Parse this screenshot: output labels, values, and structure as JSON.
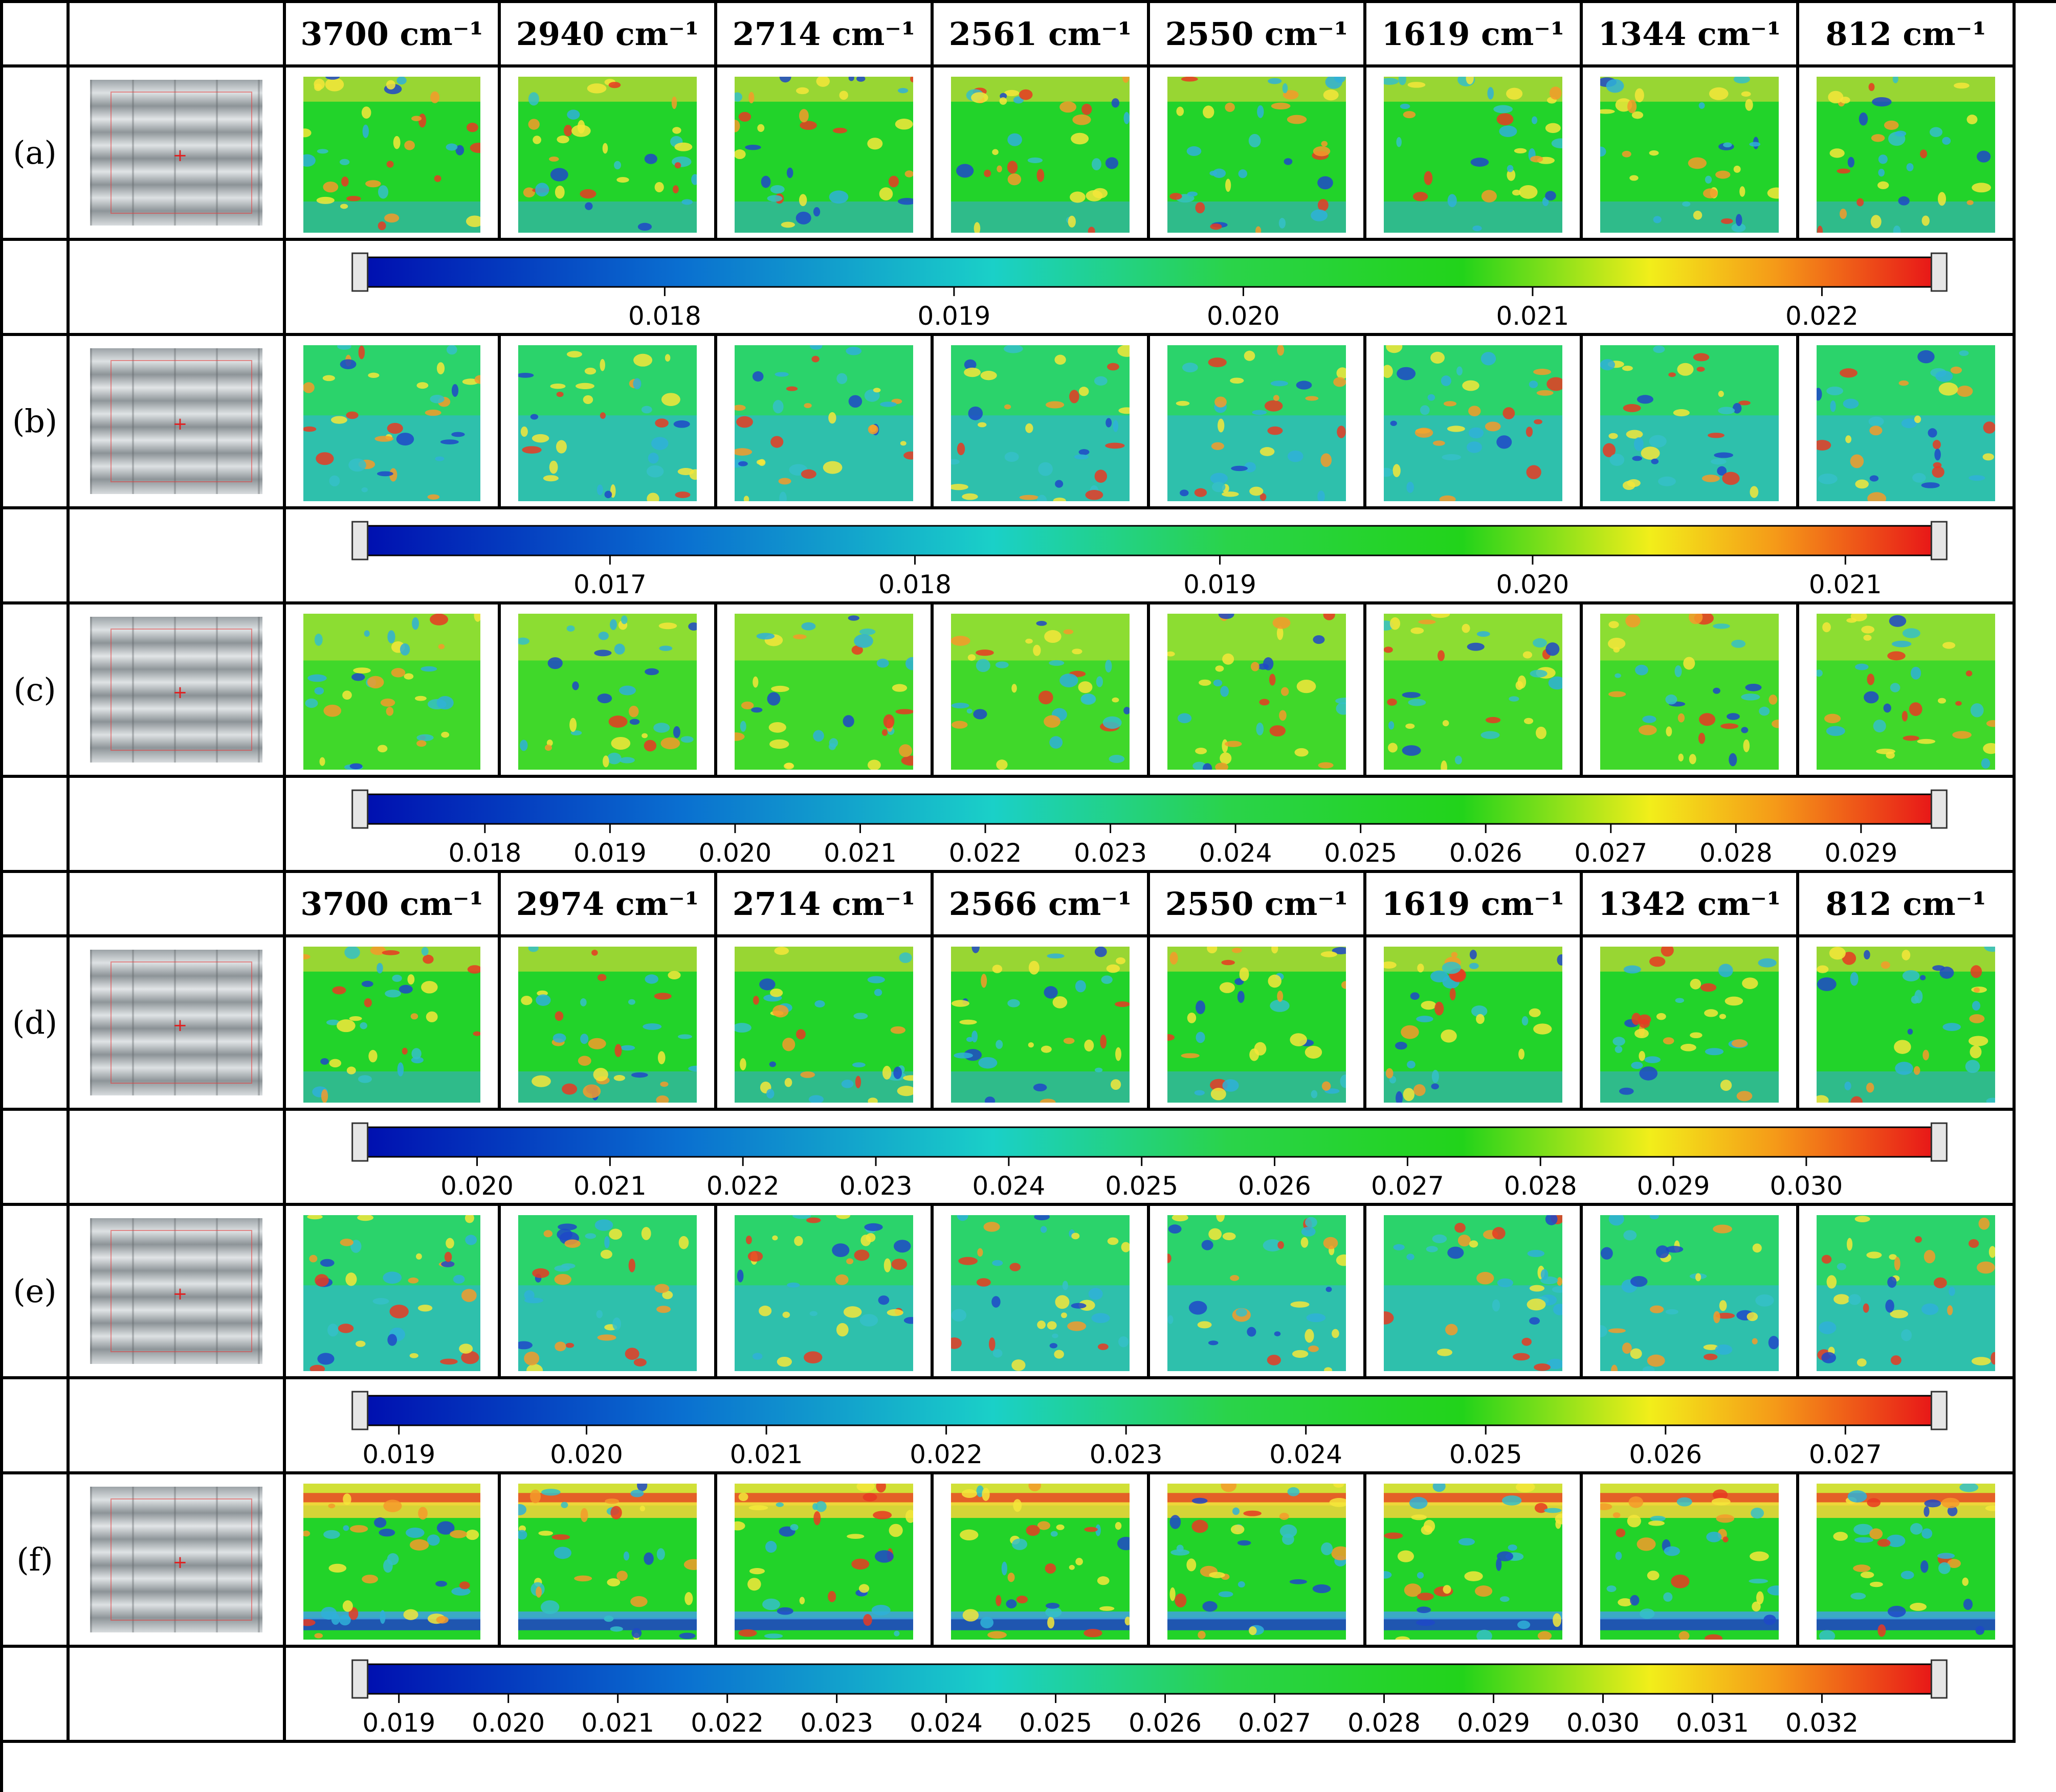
{
  "header_top": [
    "3700 cm⁻¹",
    "2940 cm⁻¹",
    "2714 cm⁻¹",
    "2561 cm⁻¹",
    "2550 cm⁻¹",
    "1619 cm⁻¹",
    "1344 cm⁻¹",
    "812 cm⁻¹"
  ],
  "header_bottom": [
    "3700 cm⁻¹",
    "2974 cm⁻¹",
    "2714 cm⁻¹",
    "2566 cm⁻¹",
    "2550 cm⁻¹",
    "1619 cm⁻¹",
    "1342 cm⁻¹",
    "812 cm⁻¹"
  ],
  "rows": [
    {
      "label": "(a)",
      "style": "mixed"
    },
    {
      "label": "(b)",
      "style": "cool"
    },
    {
      "label": "(c)",
      "style": "warm"
    },
    {
      "label": "(d)",
      "style": "mixed"
    },
    {
      "label": "(e)",
      "style": "cool"
    },
    {
      "label": "(f)",
      "style": "band"
    }
  ],
  "colorbars": [
    {
      "ticks": [
        "0.018",
        "0.019",
        "0.020",
        "0.021",
        "0.022"
      ],
      "tick_fractions": [
        0.19,
        0.375,
        0.56,
        0.745,
        0.93
      ]
    },
    {
      "ticks": [
        "0.017",
        "0.018",
        "0.019",
        "0.020",
        "0.021"
      ],
      "tick_fractions": [
        0.155,
        0.35,
        0.545,
        0.745,
        0.945
      ]
    },
    {
      "ticks": [
        "0.018",
        "0.019",
        "0.020",
        "0.021",
        "0.022",
        "0.023",
        "0.024",
        "0.025",
        "0.026",
        "0.027",
        "0.028",
        "0.029"
      ],
      "tick_fractions": [
        0.075,
        0.155,
        0.235,
        0.315,
        0.395,
        0.475,
        0.555,
        0.635,
        0.715,
        0.795,
        0.875,
        0.955
      ]
    },
    {
      "ticks": [
        "0.020",
        "0.021",
        "0.022",
        "0.023",
        "0.024",
        "0.025",
        "0.026",
        "0.027",
        "0.028",
        "0.029",
        "0.030"
      ],
      "tick_fractions": [
        0.07,
        0.155,
        0.24,
        0.325,
        0.41,
        0.495,
        0.58,
        0.665,
        0.75,
        0.835,
        0.92
      ]
    },
    {
      "ticks": [
        "0.019",
        "0.020",
        "0.021",
        "0.022",
        "0.023",
        "0.024",
        "0.025",
        "0.026",
        "0.027"
      ],
      "tick_fractions": [
        0.02,
        0.14,
        0.255,
        0.37,
        0.485,
        0.6,
        0.715,
        0.83,
        0.945
      ]
    },
    {
      "ticks": [
        "0.019",
        "0.020",
        "0.021",
        "0.022",
        "0.023",
        "0.024",
        "0.025",
        "0.026",
        "0.027",
        "0.028",
        "0.029",
        "0.030",
        "0.031",
        "0.032"
      ],
      "tick_fractions": [
        0.02,
        0.09,
        0.16,
        0.23,
        0.3,
        0.37,
        0.44,
        0.51,
        0.58,
        0.65,
        0.72,
        0.79,
        0.86,
        0.93
      ]
    }
  ]
}
